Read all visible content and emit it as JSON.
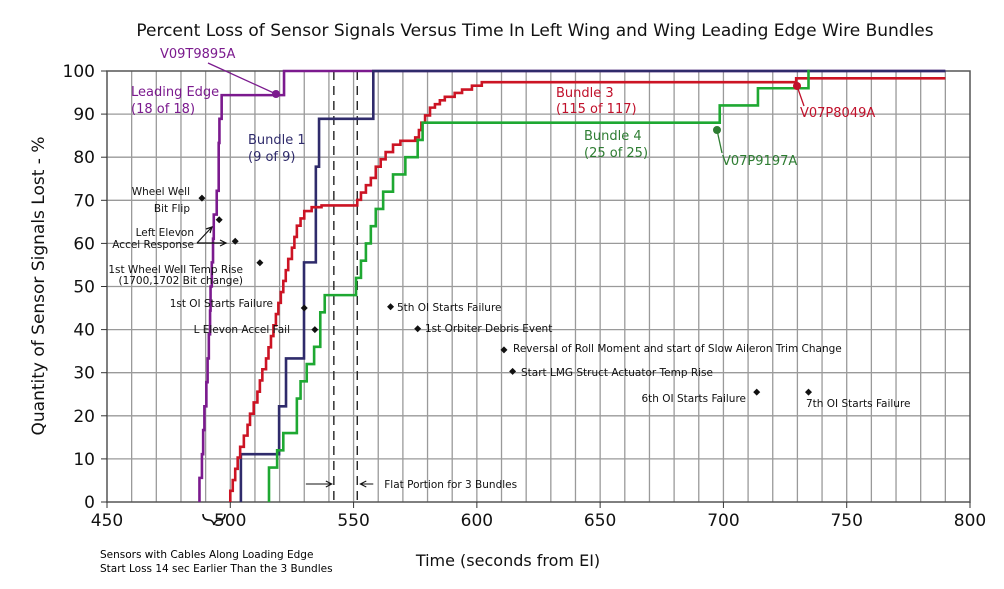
{
  "chart_data": {
    "type": "line",
    "title": "Percent Loss of Sensor Signals Versus Time In Left Wing and Wing Leading Edge Wire Bundles",
    "xlabel": "Time (seconds from EI)",
    "ylabel": "Quantity of Sensor Signals Lost - %",
    "xlim": [
      450,
      800
    ],
    "ylim": [
      0,
      100
    ],
    "xticks": [
      450,
      500,
      550,
      600,
      650,
      700,
      750,
      800
    ],
    "yticks": [
      0,
      10,
      20,
      30,
      40,
      50,
      60,
      70,
      80,
      90,
      100
    ],
    "grid": true,
    "series": [
      {
        "name": "Leading Edge",
        "label": "Leading Edge",
        "count": "(18 of 18)",
        "color": "#7b1a8e",
        "end": 790,
        "steps": [
          [
            487.5,
            0
          ],
          [
            487.5,
            5.6
          ],
          [
            488.5,
            11.1
          ],
          [
            489,
            16.7
          ],
          [
            489.5,
            22.2
          ],
          [
            490.3,
            27.8
          ],
          [
            490.8,
            33.3
          ],
          [
            491.3,
            38.9
          ],
          [
            491.8,
            44.4
          ],
          [
            492,
            50
          ],
          [
            492.5,
            55.6
          ],
          [
            493,
            61.1
          ],
          [
            493.3,
            66.7
          ],
          [
            494.5,
            72.2
          ],
          [
            495.3,
            83.3
          ],
          [
            495.6,
            88.9
          ],
          [
            496.5,
            94.4
          ],
          [
            521.8,
            100
          ]
        ]
      },
      {
        "name": "Bundle 1",
        "label": "Bundle 1",
        "count": "(9 of 9)",
        "color": "#2f2b6b",
        "end": 790,
        "steps": [
          [
            504.3,
            0
          ],
          [
            504.3,
            11.1
          ],
          [
            519.8,
            22.2
          ],
          [
            522.6,
            33.3
          ],
          [
            529.9,
            55.6
          ],
          [
            534.7,
            77.8
          ],
          [
            536,
            88.9
          ],
          [
            558,
            100
          ]
        ]
      },
      {
        "name": "Bundle 3",
        "label": "Bundle 3",
        "count": "(115 of 117)",
        "color": "#cc1424",
        "end": 790,
        "steps": [
          [
            500,
            0
          ],
          [
            500,
            2.6
          ],
          [
            501,
            5.1
          ],
          [
            502,
            7.7
          ],
          [
            503,
            10.3
          ],
          [
            504,
            12.8
          ],
          [
            505.5,
            15.4
          ],
          [
            507,
            17.9
          ],
          [
            508,
            20.5
          ],
          [
            509.5,
            23.1
          ],
          [
            511,
            25.6
          ],
          [
            512,
            28.2
          ],
          [
            513,
            30.8
          ],
          [
            514.5,
            33.3
          ],
          [
            515.5,
            35.9
          ],
          [
            516.5,
            38.5
          ],
          [
            517.5,
            41
          ],
          [
            518.5,
            43.6
          ],
          [
            519.5,
            46.2
          ],
          [
            520.5,
            48.7
          ],
          [
            521.5,
            51.3
          ],
          [
            522.5,
            53.8
          ],
          [
            523.5,
            56.4
          ],
          [
            525,
            59
          ],
          [
            526,
            61.5
          ],
          [
            527,
            64.1
          ],
          [
            528.5,
            65.8
          ],
          [
            530,
            67.5
          ],
          [
            533,
            68.4
          ],
          [
            537,
            68.8
          ],
          [
            551.5,
            70.1
          ],
          [
            553,
            71.8
          ],
          [
            555,
            73.5
          ],
          [
            557,
            75.2
          ],
          [
            559,
            77.8
          ],
          [
            561,
            79.5
          ],
          [
            563,
            81.2
          ],
          [
            566,
            82.9
          ],
          [
            569,
            83.8
          ],
          [
            575,
            84.6
          ],
          [
            576.5,
            86.3
          ],
          [
            577.5,
            88
          ],
          [
            579,
            89.7
          ],
          [
            581,
            91.5
          ],
          [
            583,
            92.3
          ],
          [
            585,
            93.2
          ],
          [
            587,
            94
          ],
          [
            591,
            94.9
          ],
          [
            594,
            95.7
          ],
          [
            598,
            96.6
          ],
          [
            602,
            97.4
          ],
          [
            729.5,
            98.3
          ]
        ]
      },
      {
        "name": "Bundle 4",
        "label": "Bundle 4",
        "count": "(25 of 25)",
        "color": "#1ea832",
        "end": 735,
        "steps": [
          [
            515.7,
            0
          ],
          [
            515.7,
            8
          ],
          [
            519,
            12
          ],
          [
            521.5,
            16
          ],
          [
            527,
            24
          ],
          [
            528.5,
            28
          ],
          [
            531,
            32
          ],
          [
            534,
            36
          ],
          [
            536.5,
            44
          ],
          [
            538.3,
            48
          ],
          [
            551,
            52
          ],
          [
            553,
            56
          ],
          [
            555,
            60
          ],
          [
            557,
            64
          ],
          [
            559,
            68
          ],
          [
            562,
            72
          ],
          [
            566,
            76
          ],
          [
            571,
            80
          ],
          [
            576,
            84
          ],
          [
            578,
            88
          ],
          [
            698.5,
            92
          ],
          [
            714,
            96
          ],
          [
            734.5,
            100
          ]
        ]
      }
    ],
    "annotations": [
      {
        "text": "Wheel Well",
        "text2": "Bit Flip",
        "x": 488.5,
        "y": 70.5
      },
      {
        "text": "Left Elevon",
        "text2": "Accel Response",
        "x": 502,
        "y": 60.5
      },
      {
        "text": "",
        "text2": "",
        "x": 495.5,
        "y": 65.5
      },
      {
        "text": "1st Wheel Well Temp Rise",
        "text2": "(1700,1702 Bit change)",
        "x": 512,
        "y": 55.5
      },
      {
        "text": "1st OI Starts Failure",
        "text2": "",
        "x": 530,
        "y": 45
      },
      {
        "text": "L Elevon Accel Fail",
        "text2": "",
        "x": 534.3,
        "y": 40
      },
      {
        "text": "5th OI Starts Failure",
        "text2": "",
        "x": 565,
        "y": 45.3
      },
      {
        "text": "1st Orbiter Debris Event",
        "text2": "",
        "x": 576,
        "y": 40.2
      },
      {
        "text": "Reversal of Roll Moment and start of Slow Aileron Trim Change",
        "text2": "",
        "x": 611,
        "y": 35.3
      },
      {
        "text": "Start LMG Struct Actuator Temp Rise",
        "text2": "",
        "x": 614.5,
        "y": 30.3
      },
      {
        "text": "6th OI Starts Failure",
        "text2": "",
        "x": 713.5,
        "y": 25.5
      },
      {
        "text": "7th OI Starts Failure",
        "text2": "",
        "x": 734.5,
        "y": 25.5
      }
    ],
    "callouts": [
      "V09T9895A",
      "V07P9197A",
      "V07P8049A"
    ],
    "flat_portion": {
      "text": "Flat Portion for 3 Bundles",
      "x_start": 542,
      "x_end": 551.5
    },
    "brace_note": [
      "Sensors with Cables Along Loading Edge",
      "Start Loss 14 sec Earlier Than the 3 Bundles"
    ]
  }
}
